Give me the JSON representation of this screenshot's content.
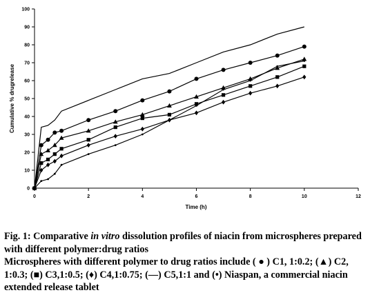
{
  "chart_data": {
    "type": "line",
    "title": "",
    "xlabel": "Time (h)",
    "ylabel": "Cumulative % drugrelease",
    "xlim": [
      0,
      12
    ],
    "ylim": [
      0,
      100
    ],
    "xticks": [
      0,
      2,
      4,
      6,
      8,
      10,
      12
    ],
    "yticks": [
      0,
      10,
      20,
      30,
      40,
      50,
      60,
      70,
      80,
      90,
      100
    ],
    "grid": false,
    "legend": "none",
    "series": [
      {
        "name": "C5",
        "marker": "none",
        "color": "#000000",
        "x": [
          0,
          0.25,
          0.5,
          0.75,
          1,
          2,
          3,
          4,
          5,
          6,
          7,
          8,
          9,
          10
        ],
        "y": [
          0,
          34,
          35,
          38,
          43,
          49,
          55,
          61,
          64,
          70,
          76,
          80,
          86,
          90
        ]
      },
      {
        "name": "C1",
        "marker": "circle",
        "color": "#000000",
        "x": [
          0,
          0.25,
          0.5,
          0.75,
          1,
          2,
          3,
          4,
          5,
          6,
          7,
          8,
          9,
          10
        ],
        "y": [
          0,
          24,
          27,
          31,
          32,
          38,
          43,
          49,
          54,
          61,
          66,
          70,
          74,
          79
        ]
      },
      {
        "name": "C2",
        "marker": "triangle",
        "color": "#000000",
        "x": [
          0,
          0.25,
          0.5,
          0.75,
          1,
          2,
          3,
          4,
          5,
          6,
          7,
          8,
          9,
          10
        ],
        "y": [
          0,
          19,
          21,
          24,
          28,
          32,
          37,
          41,
          46,
          51,
          56,
          61,
          67,
          72
        ]
      },
      {
        "name": "C3",
        "marker": "square",
        "color": "#000000",
        "x": [
          0,
          0.25,
          0.5,
          0.75,
          1,
          2,
          3,
          4,
          5,
          6,
          7,
          8,
          9,
          10
        ],
        "y": [
          0,
          14,
          16,
          19,
          22,
          27,
          34,
          39,
          41,
          47,
          52,
          57,
          62,
          68
        ]
      },
      {
        "name": "C4",
        "marker": "diamond",
        "color": "#000000",
        "x": [
          0,
          0.25,
          0.5,
          0.75,
          1,
          2,
          3,
          4,
          5,
          6,
          7,
          8,
          9,
          10
        ],
        "y": [
          0,
          10,
          13,
          15,
          18,
          24,
          29,
          33,
          38,
          42,
          48,
          53,
          57,
          62
        ]
      },
      {
        "name": "Niaspan",
        "marker": "dot",
        "color": "#000000",
        "x": [
          0,
          0.25,
          0.5,
          0.75,
          1,
          2,
          3,
          4,
          5,
          6,
          7,
          8,
          9,
          10
        ],
        "y": [
          0,
          4,
          5,
          8,
          13,
          19,
          24,
          30,
          38,
          46,
          55,
          60,
          68,
          71
        ]
      }
    ]
  },
  "caption": {
    "fig_label": "Fig. 1:",
    "title_pre": " Comparative ",
    "title_italic": "in vitro",
    "title_post": " dissolution profiles of niacin from microspheres prepared with different polymer:drug ratios",
    "body": "Microspheres with different polymer to drug ratios include ( ● ) C1, 1:0.2; (▲) C2, 1:0.3; (■) C3,1:0.5; (♦) C4,1:0.75; (—) C5,1:1 and (•) Niaspan, a commercial niacin extended release tablet"
  }
}
